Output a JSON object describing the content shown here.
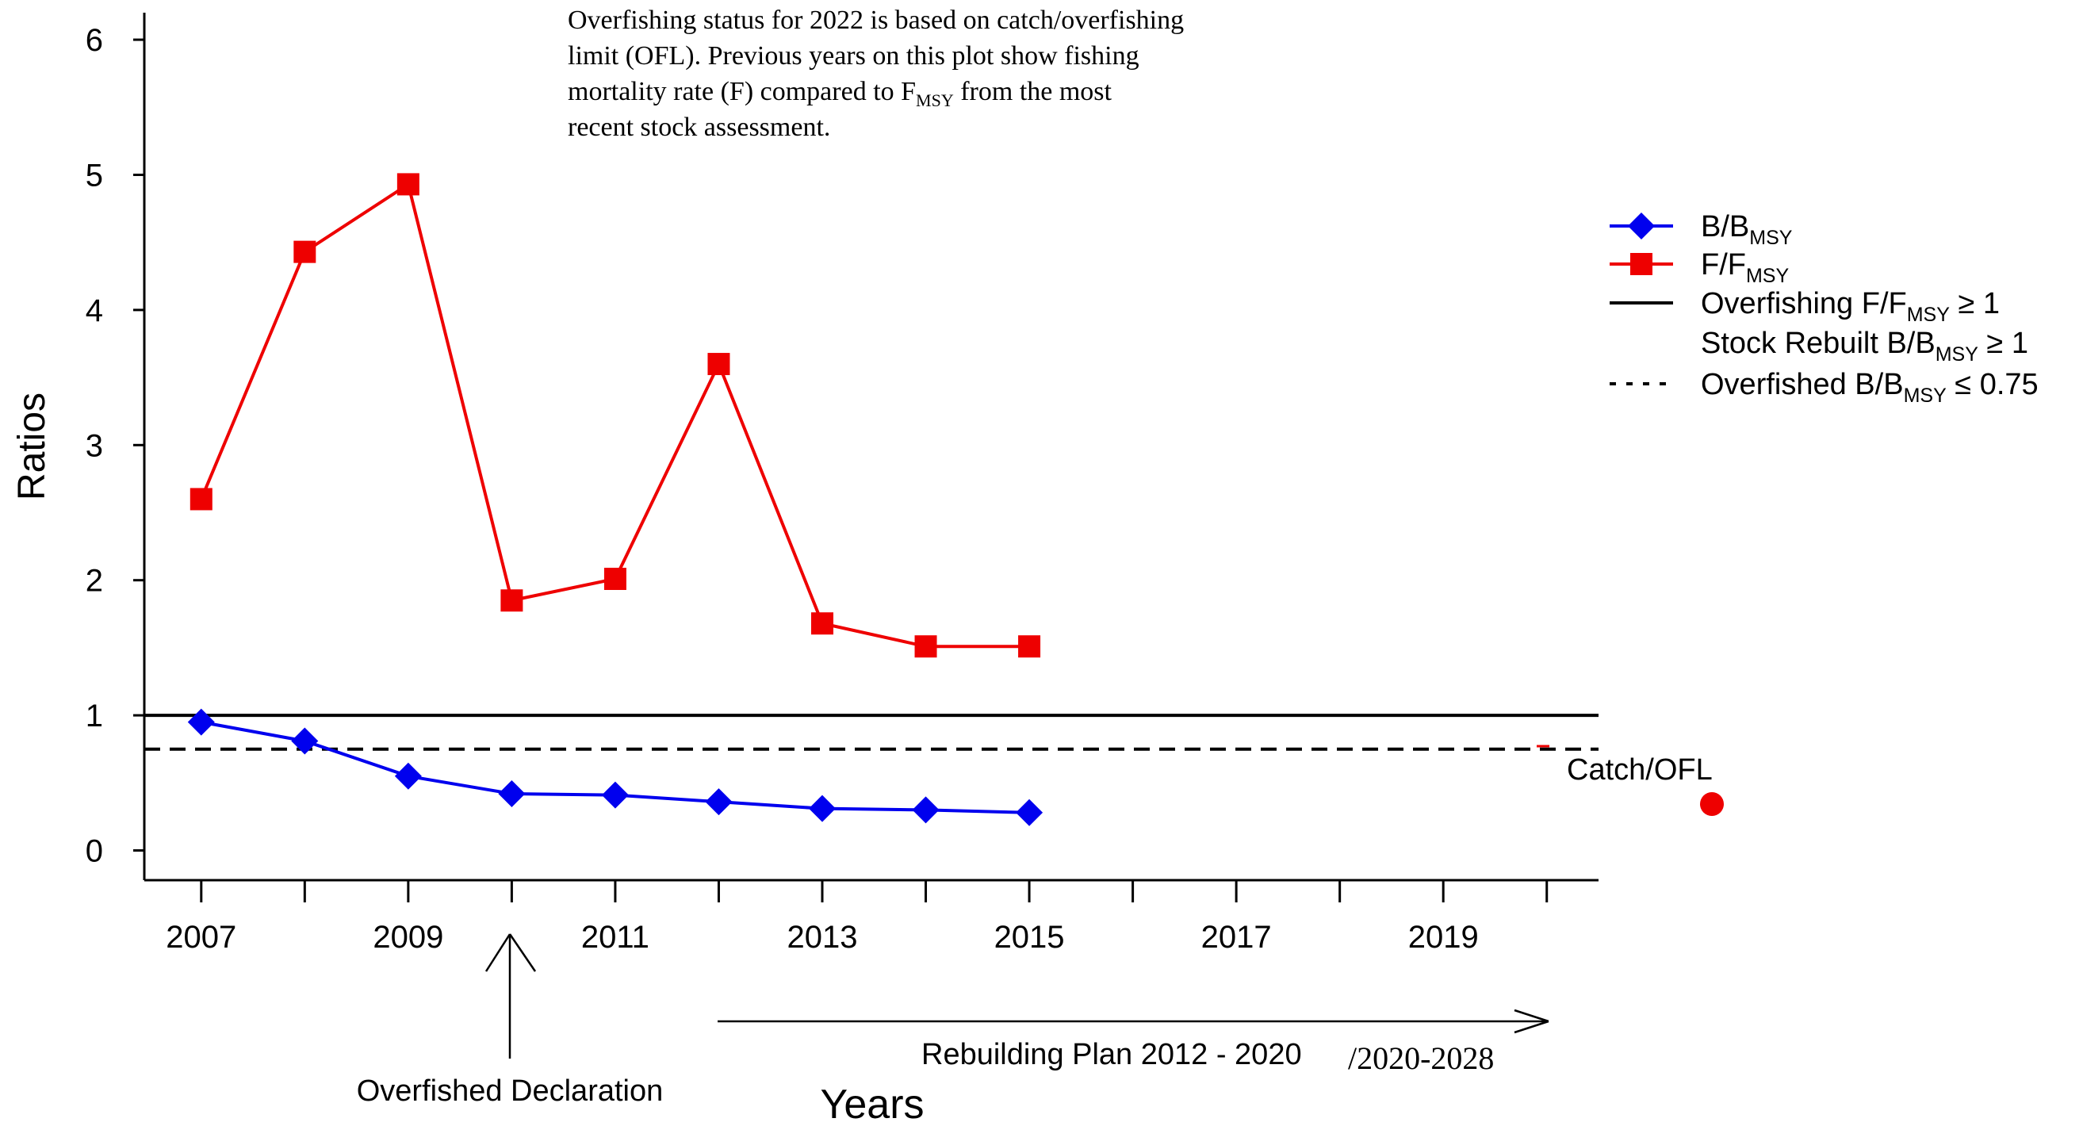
{
  "chart_data": {
    "type": "line",
    "xlabel": "Years",
    "ylabel": "Ratios",
    "xlim": [
      2006.45,
      2020.5
    ],
    "ylim": [
      -0.22,
      6.2
    ],
    "x_ticks": [
      2007,
      2008,
      2009,
      2010,
      2011,
      2012,
      2013,
      2014,
      2015,
      2016,
      2017,
      2018,
      2019,
      2020
    ],
    "x_tick_labels": [
      "2007",
      "2009",
      "2011",
      "2013",
      "2015",
      "2017",
      "2019"
    ],
    "x_tick_label_years": [
      2007,
      2009,
      2011,
      2013,
      2015,
      2017,
      2019
    ],
    "y_ticks": [
      0,
      1,
      2,
      3,
      4,
      5,
      6
    ],
    "y_tick_labels": [
      "0",
      "1",
      "2",
      "3",
      "4",
      "5",
      "6"
    ],
    "grid": false,
    "legend_position": "right",
    "series": [
      {
        "name": "B/BMSY",
        "color": "#0000ee",
        "marker": "diamond",
        "x": [
          2007,
          2008,
          2009,
          2010,
          2011,
          2012,
          2013,
          2014,
          2015
        ],
        "values": [
          0.95,
          0.81,
          0.55,
          0.42,
          0.41,
          0.36,
          0.31,
          0.3,
          0.28
        ]
      },
      {
        "name": "F/FMSY",
        "color": "#ee0000",
        "marker": "square",
        "x": [
          2007,
          2008,
          2009,
          2010,
          2011,
          2012,
          2013,
          2014,
          2015
        ],
        "values": [
          2.6,
          4.43,
          4.93,
          1.85,
          2.01,
          3.6,
          1.68,
          1.51,
          1.51
        ]
      }
    ],
    "reference_lines": [
      {
        "y": 1,
        "style": "solid",
        "color": "#000000"
      },
      {
        "y": 0.75,
        "style": "dashed",
        "color": "#000000"
      }
    ],
    "catch_ofl": {
      "label": "Catch/OFL",
      "color": "#ee0000",
      "year": 2022
    },
    "legend": {
      "items": [
        {
          "main": "B/B",
          "sub": "MSY",
          "tail": "",
          "style": "diamond-line",
          "color": "#0000ee"
        },
        {
          "main": "F/F",
          "sub": "MSY",
          "tail": "",
          "style": "square-line",
          "color": "#ee0000"
        },
        {
          "main": "Overfishing F/F",
          "sub": "MSY",
          "tail": " ≥ 1",
          "style": "solid",
          "color": "#000000"
        },
        {
          "main": "Stock Rebuilt B/B",
          "sub": "MSY",
          "tail": " ≥ 1",
          "style": "none",
          "color": "#000000"
        },
        {
          "main": "Overfished B/B",
          "sub": "MSY",
          "tail": " ≤ 0.75",
          "style": "dotted",
          "color": "#000000"
        }
      ]
    },
    "annotations": {
      "note_lines": [
        {
          "text": "Overfishing status for 2022 is based on catch/overfishing",
          "sub": "",
          "tail": ""
        },
        {
          "text": "limit (OFL). Previous years on this plot show fishing",
          "sub": "",
          "tail": ""
        },
        {
          "text": "mortality rate (F) compared to F",
          "sub": "MSY",
          "tail": " from the most"
        },
        {
          "text": "recent stock assessment.",
          "sub": "",
          "tail": ""
        }
      ],
      "overfished_declaration": "Overfished Declaration",
      "rebuilding_plan": "Rebuilding Plan 2012 - 2020",
      "rebuilding_plan_revised": "/2020-2028"
    }
  }
}
